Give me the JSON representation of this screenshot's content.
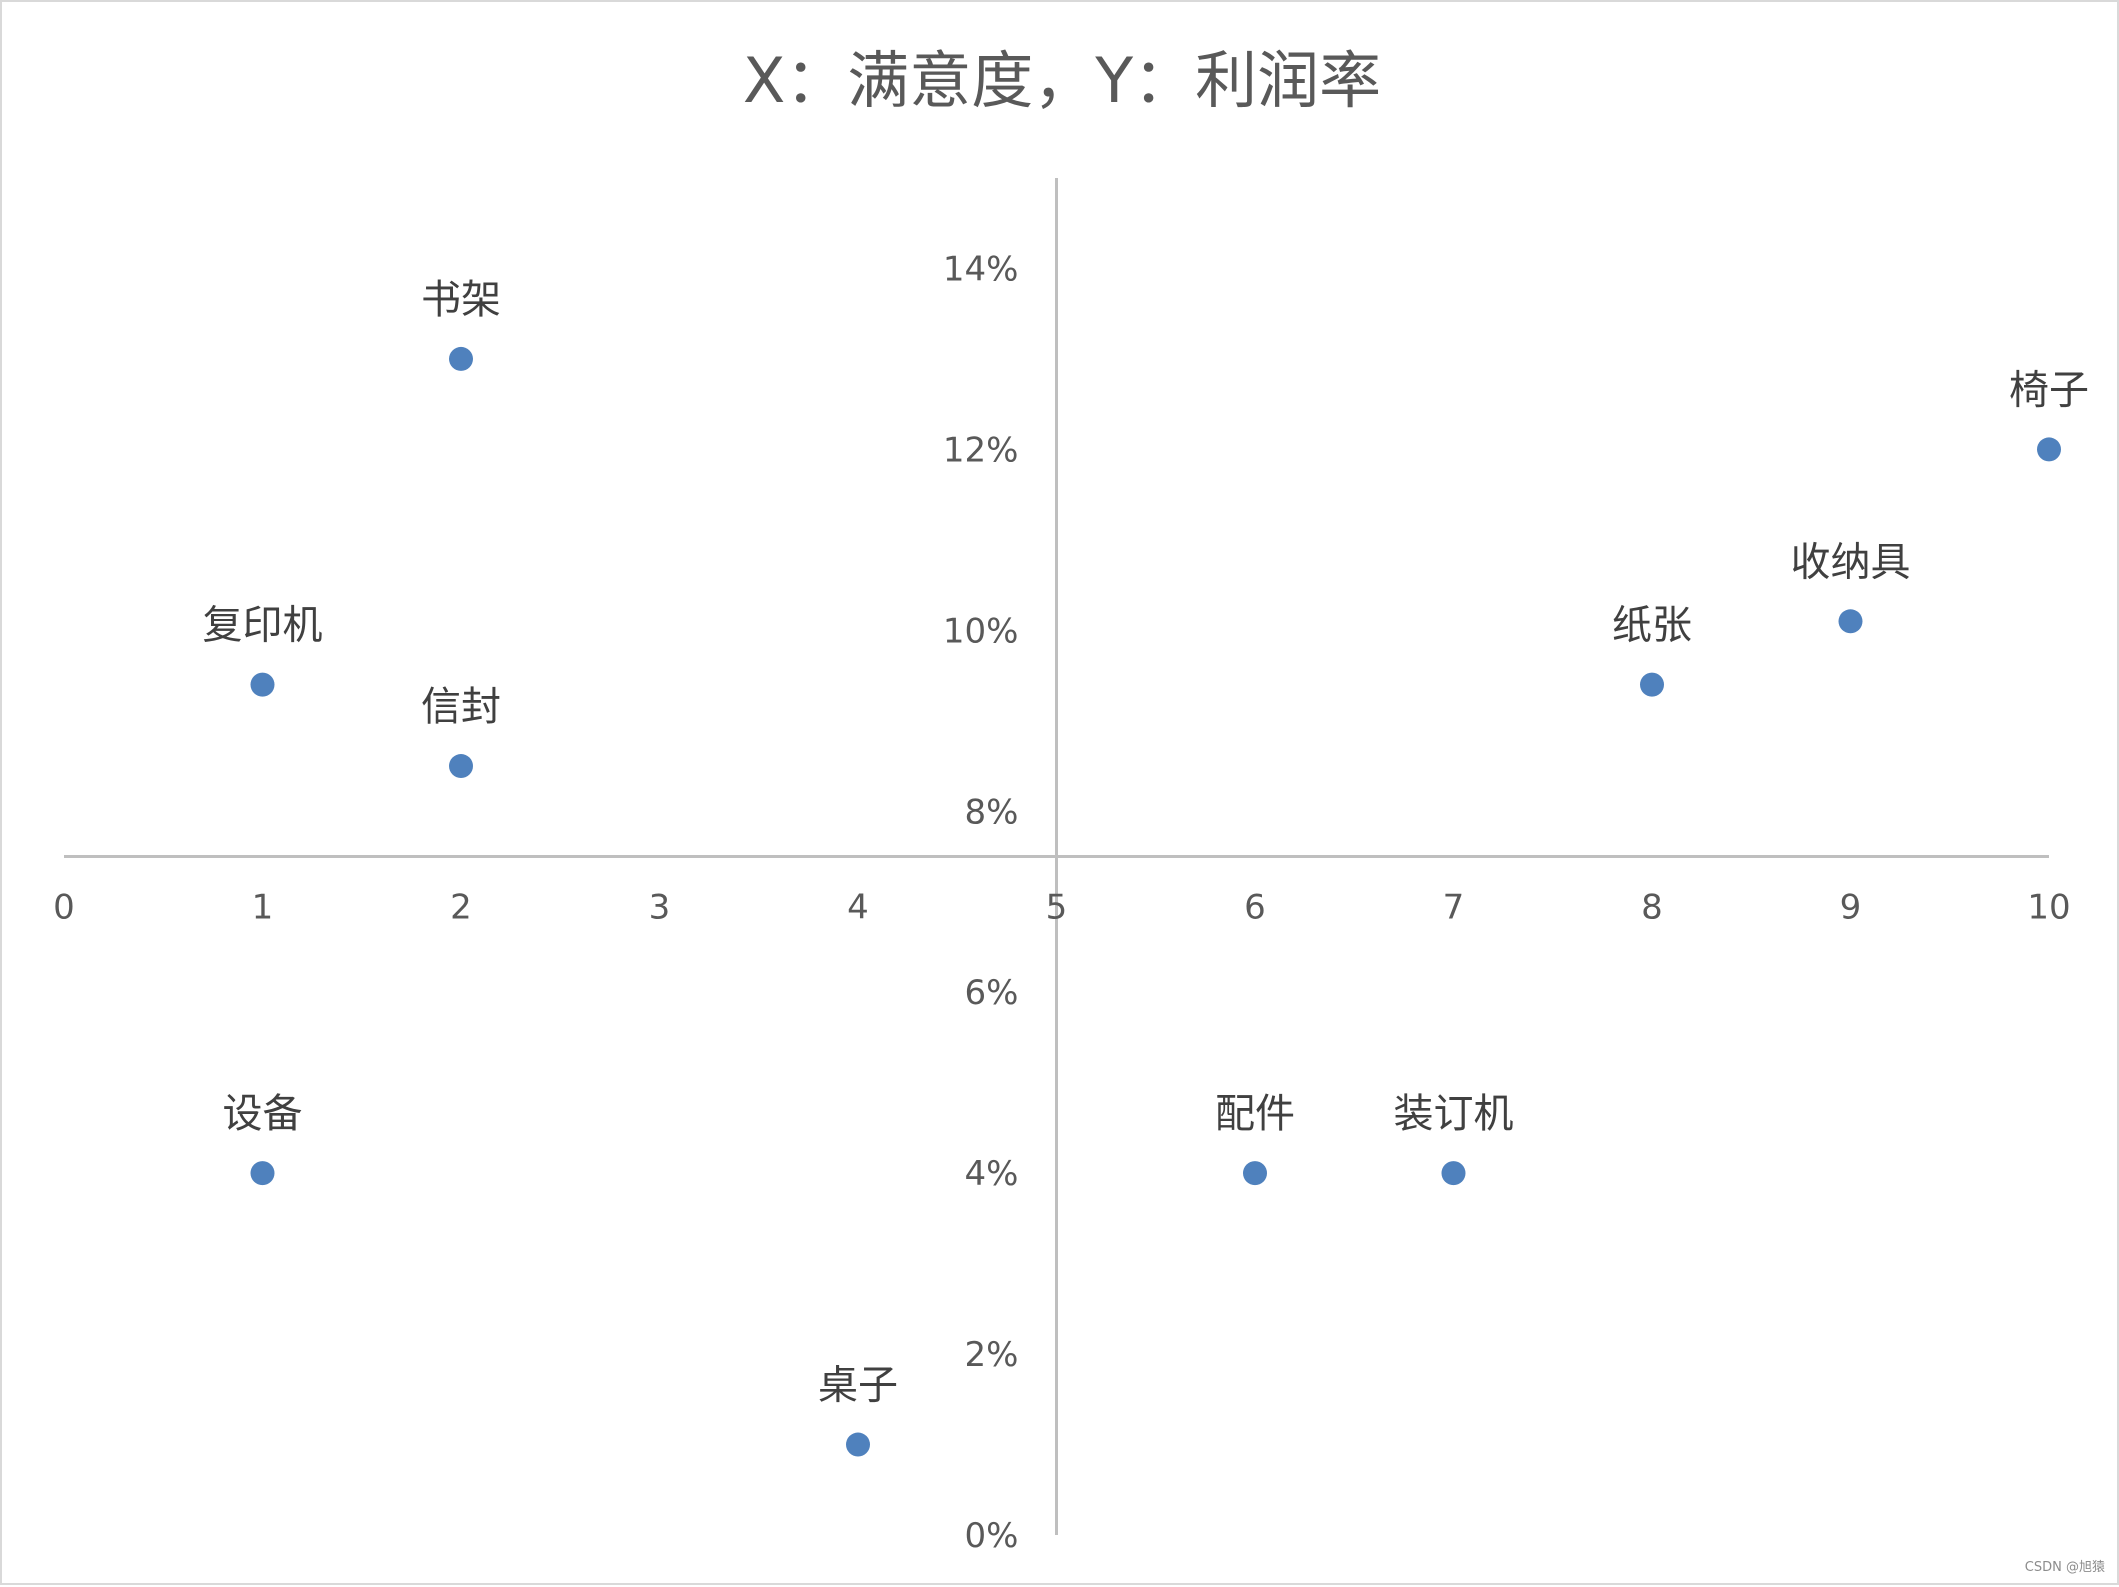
{
  "chart_data": {
    "type": "scatter",
    "title": "X：满意度，Y：利润率",
    "xlabel": "",
    "ylabel": "",
    "xlim": [
      0,
      10
    ],
    "ylim": [
      0,
      0.15
    ],
    "x_crosses_y_at": 0.075,
    "y_crosses_x_at": 5,
    "x_ticks": [
      0,
      1,
      2,
      3,
      4,
      5,
      6,
      7,
      8,
      9,
      10
    ],
    "x_tick_labels": [
      "0",
      "1",
      "2",
      "3",
      "4",
      "5",
      "6",
      "7",
      "8",
      "9",
      "10"
    ],
    "y_ticks": [
      0,
      0.02,
      0.04,
      0.06,
      0.08,
      0.1,
      0.12,
      0.14
    ],
    "y_tick_labels": [
      "0%",
      "2%",
      "4%",
      "6%",
      "8%",
      "10%",
      "12%",
      "14%"
    ],
    "grid": false,
    "legend": "none",
    "marker_color": "#4f81bd",
    "axis_color": "#bfbfbf",
    "points": [
      {
        "label": "书架",
        "x": 2,
        "y": 0.13
      },
      {
        "label": "复印机",
        "x": 1,
        "y": 0.094
      },
      {
        "label": "信封",
        "x": 2,
        "y": 0.085
      },
      {
        "label": "设备",
        "x": 1,
        "y": 0.04
      },
      {
        "label": "桌子",
        "x": 4,
        "y": 0.01
      },
      {
        "label": "配件",
        "x": 6,
        "y": 0.04
      },
      {
        "label": "装订机",
        "x": 7,
        "y": 0.04
      },
      {
        "label": "纸张",
        "x": 8,
        "y": 0.094
      },
      {
        "label": "收纳具",
        "x": 9,
        "y": 0.101
      },
      {
        "label": "椅子",
        "x": 10,
        "y": 0.12
      }
    ]
  },
  "watermark": "CSDN @旭猿"
}
